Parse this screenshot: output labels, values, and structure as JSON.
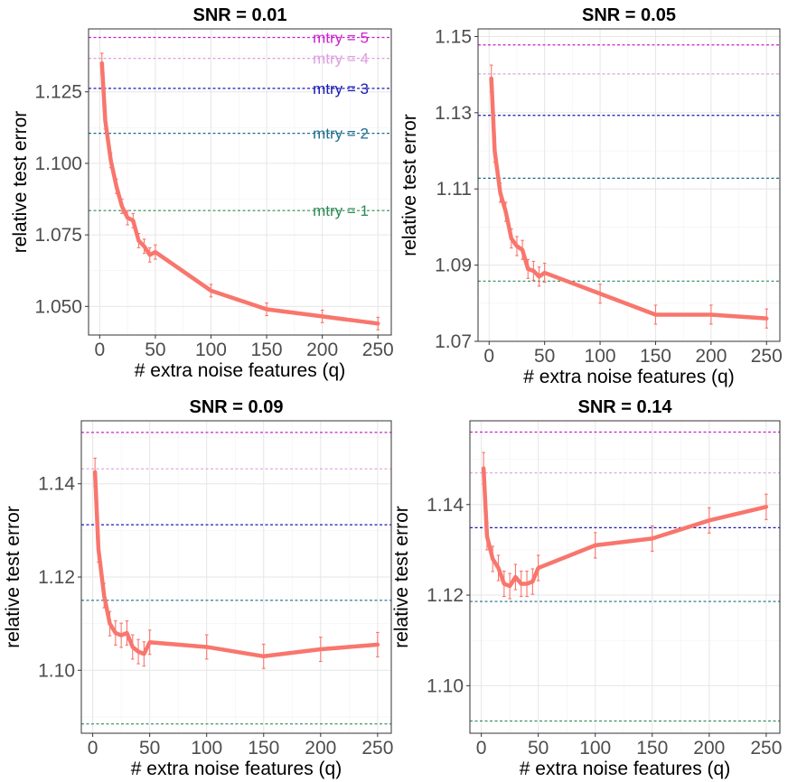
{
  "chart_data": [
    {
      "type": "line",
      "title": "SNR = 0.01",
      "xlabel": "# extra noise features (q)",
      "ylabel": "relative test error",
      "xlim": [
        -10,
        262
      ],
      "ylim": [
        1.04,
        1.147
      ],
      "xticks": [
        0,
        50,
        100,
        150,
        200,
        250
      ],
      "yticks": [
        1.05,
        1.075,
        1.1,
        1.125
      ],
      "ytick_labels": [
        "1.050",
        "1.075",
        "1.100",
        "1.125"
      ],
      "grid": true,
      "reference_lines": [
        {
          "label": "mtry = 1",
          "y": 1.0835,
          "color": "#2E8B57"
        },
        {
          "label": "mtry = 2",
          "y": 1.1105,
          "color": "#1F6E8C"
        },
        {
          "label": "mtry = 3",
          "y": 1.1262,
          "color": "#1A1AB5"
        },
        {
          "label": "mtry = 4",
          "y": 1.1367,
          "color": "#DDA0DD"
        },
        {
          "label": "mtry = 5",
          "y": 1.144,
          "color": "#CC22CC"
        }
      ],
      "series": [
        {
          "color": "#F8766D",
          "x": [
            2,
            5,
            10,
            15,
            20,
            25,
            30,
            35,
            40,
            45,
            50,
            100,
            150,
            200,
            250
          ],
          "y": [
            1.135,
            1.115,
            1.101,
            1.092,
            1.085,
            1.081,
            1.08,
            1.073,
            1.071,
            1.068,
            1.069,
            1.0555,
            1.049,
            1.0465,
            1.044
          ],
          "err": [
            0.0035,
            0.003,
            0.0025,
            0.0025,
            0.0025,
            0.0025,
            0.0025,
            0.0025,
            0.0025,
            0.0025,
            0.0025,
            0.0022,
            0.0022,
            0.0022,
            0.0022
          ]
        }
      ]
    },
    {
      "type": "line",
      "title": "SNR = 0.05",
      "xlabel": "# extra noise features (q)",
      "ylabel": "relative test error",
      "xlim": [
        -10,
        262
      ],
      "ylim": [
        1.07,
        1.152
      ],
      "xticks": [
        0,
        50,
        100,
        150,
        200,
        250
      ],
      "yticks": [
        1.07,
        1.09,
        1.11,
        1.13,
        1.15
      ],
      "ytick_labels": [
        "1.07",
        "1.09",
        "1.11",
        "1.13",
        "1.15"
      ],
      "grid": true,
      "reference_lines": [
        {
          "label": "",
          "y": 1.0858,
          "color": "#2E8B57"
        },
        {
          "label": "",
          "y": 1.1128,
          "color": "#1F6E8C"
        },
        {
          "label": "",
          "y": 1.1293,
          "color": "#1A1AB5"
        },
        {
          "label": "",
          "y": 1.1402,
          "color": "#DDA0DD"
        },
        {
          "label": "",
          "y": 1.1478,
          "color": "#CC22CC"
        }
      ],
      "series": [
        {
          "color": "#F8766D",
          "x": [
            2,
            5,
            10,
            15,
            20,
            25,
            30,
            35,
            40,
            45,
            50,
            100,
            150,
            200,
            250
          ],
          "y": [
            1.139,
            1.12,
            1.109,
            1.104,
            1.097,
            1.095,
            1.094,
            1.089,
            1.0885,
            1.087,
            1.088,
            1.0825,
            1.077,
            1.077,
            1.076
          ],
          "err": [
            0.0035,
            0.003,
            0.0025,
            0.0025,
            0.0025,
            0.0025,
            0.0025,
            0.0025,
            0.0025,
            0.0025,
            0.0025,
            0.0025,
            0.0025,
            0.0025,
            0.0025
          ]
        }
      ]
    },
    {
      "type": "line",
      "title": "SNR = 0.09",
      "xlabel": "# extra noise features (q)",
      "ylabel": "relative test error",
      "xlim": [
        -10,
        262
      ],
      "ylim": [
        1.0865,
        1.1535
      ],
      "xticks": [
        0,
        50,
        100,
        150,
        200,
        250
      ],
      "yticks": [
        1.1,
        1.12,
        1.14
      ],
      "ytick_labels": [
        "1.10",
        "1.12",
        "1.14"
      ],
      "grid": true,
      "reference_lines": [
        {
          "label": "",
          "y": 1.0885,
          "color": "#2E8B57"
        },
        {
          "label": "",
          "y": 1.115,
          "color": "#1F6E8C"
        },
        {
          "label": "",
          "y": 1.1312,
          "color": "#1A1AB5"
        },
        {
          "label": "",
          "y": 1.1432,
          "color": "#DDA0DD"
        },
        {
          "label": "",
          "y": 1.151,
          "color": "#CC22CC"
        }
      ],
      "series": [
        {
          "color": "#F8766D",
          "x": [
            2,
            5,
            10,
            15,
            20,
            25,
            30,
            35,
            40,
            45,
            50,
            100,
            150,
            200,
            250
          ],
          "y": [
            1.1425,
            1.126,
            1.116,
            1.11,
            1.108,
            1.1075,
            1.108,
            1.105,
            1.104,
            1.1035,
            1.106,
            1.105,
            1.103,
            1.1045,
            1.1055
          ],
          "err": [
            0.003,
            0.0028,
            0.0026,
            0.0026,
            0.0026,
            0.0026,
            0.0026,
            0.0026,
            0.0026,
            0.0026,
            0.0026,
            0.0026,
            0.0026,
            0.0026,
            0.0026
          ]
        }
      ]
    },
    {
      "type": "line",
      "title": "SNR = 0.14",
      "xlabel": "# extra noise features (q)",
      "ylabel": "relative test error",
      "xlim": [
        -10,
        262
      ],
      "ylim": [
        1.0895,
        1.1585
      ],
      "xticks": [
        0,
        50,
        100,
        150,
        200,
        250
      ],
      "yticks": [
        1.1,
        1.12,
        1.14
      ],
      "ytick_labels": [
        "1.10",
        "1.12",
        "1.14"
      ],
      "grid": true,
      "reference_lines": [
        {
          "label": "",
          "y": 1.0922,
          "color": "#2E8B57"
        },
        {
          "label": "",
          "y": 1.1186,
          "color": "#1F6E8C"
        },
        {
          "label": "",
          "y": 1.1349,
          "color": "#1A1AB5"
        },
        {
          "label": "",
          "y": 1.147,
          "color": "#DDA0DD"
        },
        {
          "label": "",
          "y": 1.156,
          "color": "#CC22CC"
        }
      ],
      "series": [
        {
          "color": "#F8766D",
          "x": [
            2,
            5,
            10,
            15,
            20,
            25,
            30,
            35,
            40,
            45,
            50,
            100,
            150,
            200,
            250
          ],
          "y": [
            1.148,
            1.133,
            1.128,
            1.126,
            1.1225,
            1.122,
            1.124,
            1.1225,
            1.1225,
            1.123,
            1.126,
            1.131,
            1.1325,
            1.1365,
            1.1395
          ],
          "err": [
            0.0035,
            0.003,
            0.0028,
            0.0028,
            0.0028,
            0.0028,
            0.0028,
            0.0028,
            0.0028,
            0.0028,
            0.0028,
            0.0028,
            0.0028,
            0.0028,
            0.0028
          ]
        }
      ]
    }
  ]
}
